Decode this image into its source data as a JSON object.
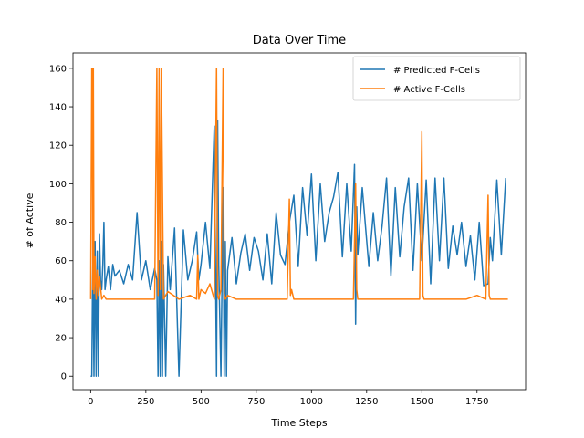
{
  "chart_data": {
    "type": "line",
    "title": "Data Over Time",
    "xlabel": "Time Steps",
    "ylabel": "# of Active",
    "xlim": [
      -80,
      1970
    ],
    "ylim": [
      -7,
      168
    ],
    "xticks": [
      0,
      250,
      500,
      750,
      1000,
      1250,
      1500,
      1750
    ],
    "yticks": [
      0,
      20,
      40,
      60,
      80,
      100,
      120,
      140,
      160
    ],
    "grid": false,
    "legend": "top-right",
    "series": [
      {
        "name": "# Predicted F-Cells",
        "color": "#1f77b4",
        "x": [
          0,
          5,
          8,
          10,
          15,
          18,
          20,
          25,
          30,
          35,
          40,
          45,
          50,
          55,
          60,
          65,
          70,
          80,
          90,
          100,
          110,
          130,
          150,
          170,
          190,
          210,
          230,
          250,
          270,
          290,
          300,
          305,
          310,
          315,
          320,
          325,
          330,
          340,
          350,
          360,
          380,
          400,
          420,
          440,
          460,
          480,
          490,
          500,
          520,
          540,
          560,
          570,
          575,
          580,
          590,
          600,
          605,
          610,
          615,
          620,
          640,
          660,
          680,
          700,
          720,
          740,
          760,
          780,
          800,
          820,
          840,
          860,
          880,
          900,
          920,
          940,
          960,
          980,
          1000,
          1020,
          1040,
          1060,
          1080,
          1100,
          1120,
          1140,
          1160,
          1180,
          1195,
          1200,
          1205,
          1210,
          1230,
          1260,
          1280,
          1300,
          1320,
          1340,
          1360,
          1380,
          1400,
          1420,
          1440,
          1460,
          1480,
          1500,
          1520,
          1540,
          1560,
          1580,
          1600,
          1620,
          1640,
          1660,
          1680,
          1700,
          1720,
          1740,
          1760,
          1780,
          1800,
          1810,
          1820,
          1840,
          1860,
          1880
        ],
        "y": [
          0,
          0,
          40,
          60,
          0,
          45,
          70,
          0,
          65,
          0,
          74,
          50,
          45,
          58,
          80,
          45,
          50,
          57,
          45,
          58,
          52,
          55,
          48,
          58,
          50,
          85,
          50,
          60,
          45,
          56,
          50,
          0,
          60,
          0,
          70,
          0,
          58,
          0,
          62,
          45,
          77,
          0,
          76,
          50,
          60,
          75,
          50,
          58,
          80,
          56,
          130,
          0,
          133,
          58,
          0,
          98,
          0,
          70,
          0,
          55,
          72,
          48,
          64,
          74,
          55,
          72,
          65,
          50,
          74,
          48,
          85,
          63,
          58,
          80,
          94,
          57,
          98,
          73,
          105,
          60,
          100,
          70,
          85,
          93,
          106,
          62,
          100,
          65,
          110,
          27,
          88,
          63,
          98,
          57,
          85,
          60,
          78,
          103,
          52,
          98,
          62,
          88,
          103,
          55,
          100,
          60,
          102,
          48,
          103,
          60,
          103,
          56,
          78,
          63,
          80,
          57,
          73,
          50,
          80,
          47,
          48,
          72,
          60,
          102,
          63,
          103
        ]
      },
      {
        "name": "# Active F-Cells",
        "color": "#ff7f0e",
        "x": [
          0,
          5,
          8,
          10,
          12,
          15,
          20,
          25,
          30,
          35,
          40,
          50,
          60,
          70,
          80,
          100,
          150,
          200,
          250,
          290,
          300,
          305,
          310,
          315,
          320,
          330,
          350,
          400,
          450,
          480,
          485,
          490,
          500,
          520,
          540,
          560,
          570,
          575,
          580,
          590,
          600,
          605,
          610,
          620,
          640,
          660,
          700,
          750,
          800,
          850,
          880,
          890,
          900,
          905,
          910,
          920,
          950,
          1000,
          1050,
          1100,
          1150,
          1190,
          1200,
          1205,
          1210,
          1220,
          1250,
          1300,
          1350,
          1400,
          1450,
          1490,
          1500,
          1505,
          1510,
          1550,
          1600,
          1650,
          1700,
          1750,
          1790,
          1800,
          1805,
          1810,
          1850,
          1890
        ],
        "y": [
          40,
          160,
          160,
          45,
          160,
          43,
          62,
          40,
          55,
          42,
          52,
          40,
          42,
          40,
          40,
          40,
          40,
          40,
          40,
          40,
          160,
          42,
          160,
          45,
          160,
          40,
          44,
          40,
          42,
          40,
          63,
          40,
          45,
          43,
          48,
          40,
          160,
          42,
          40,
          45,
          160,
          43,
          40,
          42,
          41,
          40,
          40,
          40,
          40,
          40,
          40,
          40,
          92,
          42,
          45,
          40,
          40,
          40,
          40,
          40,
          40,
          40,
          100,
          45,
          40,
          40,
          40,
          40,
          40,
          40,
          40,
          40,
          127,
          42,
          40,
          40,
          40,
          40,
          40,
          42,
          40,
          94,
          42,
          40,
          40,
          40
        ]
      }
    ]
  }
}
